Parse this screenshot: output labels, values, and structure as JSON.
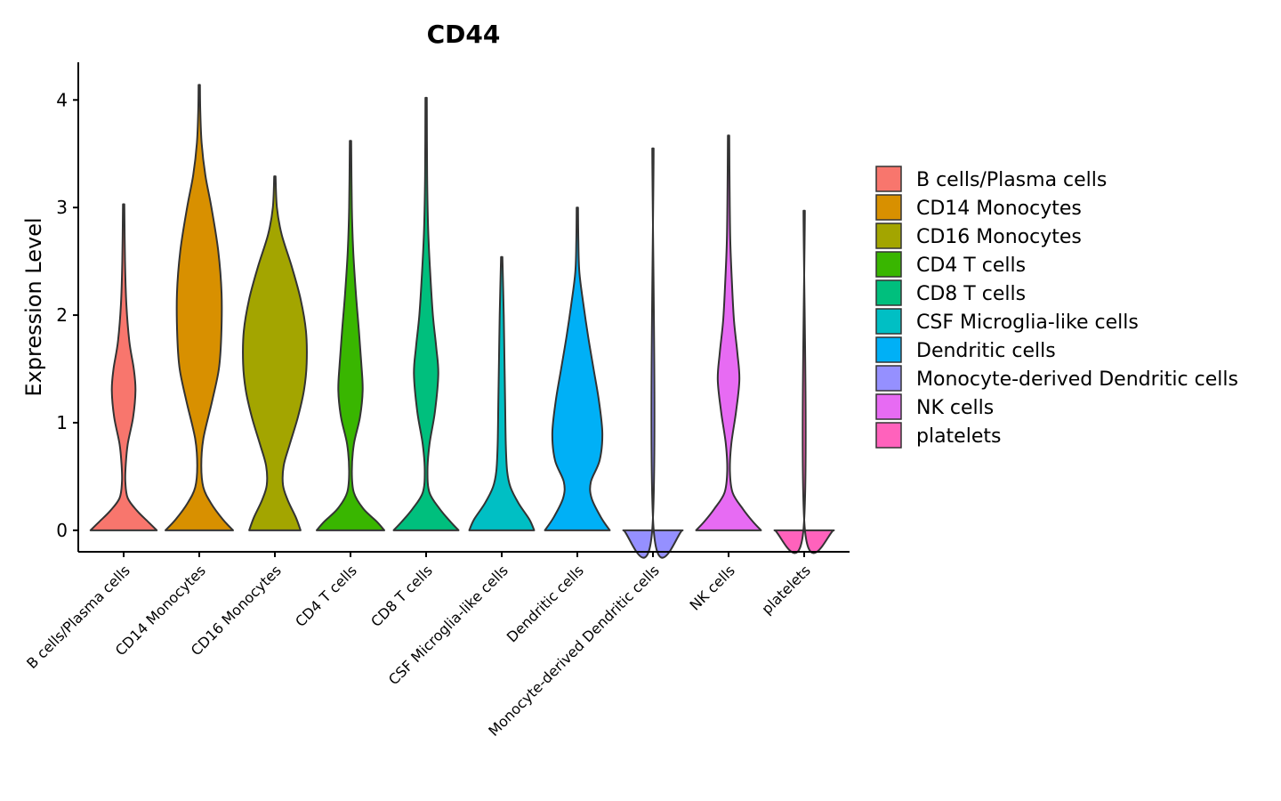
{
  "chart_data": {
    "type": "violin",
    "title": "CD44",
    "xlabel": "",
    "ylabel": "Expression Level",
    "ylim": [
      -0.2,
      4.35
    ],
    "yticks": [
      0,
      1,
      2,
      3,
      4
    ],
    "grid": false,
    "legend_position": "right",
    "categories": [
      "B cells/Plasma cells",
      "CD14 Monocytes",
      "CD16 Monocytes",
      "CD4 T cells",
      "CD8 T cells",
      "CSF Microglia-like cells",
      "Dendritic cells",
      "Monocyte-derived Dendritic cells",
      "NK cells",
      "platelets"
    ],
    "colors": [
      "#F8766D",
      "#D89000",
      "#A3A500",
      "#39B600",
      "#00BF7D",
      "#00BFC4",
      "#00B0F6",
      "#9590FF",
      "#E76BF3",
      "#FF62BC"
    ],
    "series": [
      {
        "name": "B cells/Plasma cells",
        "max": 3.03,
        "density": [
          [
            0,
            0.98
          ],
          [
            0.08,
            0.72
          ],
          [
            0.18,
            0.4
          ],
          [
            0.3,
            0.12
          ],
          [
            0.45,
            0.05
          ],
          [
            0.6,
            0.06
          ],
          [
            0.8,
            0.12
          ],
          [
            1.05,
            0.28
          ],
          [
            1.3,
            0.35
          ],
          [
            1.5,
            0.3
          ],
          [
            1.75,
            0.17
          ],
          [
            2.1,
            0.08
          ],
          [
            2.5,
            0.04
          ],
          [
            3.03,
            0.02
          ]
        ]
      },
      {
        "name": "CD14 Monocytes",
        "max": 4.14,
        "density": [
          [
            0,
            1.0
          ],
          [
            0.1,
            0.7
          ],
          [
            0.25,
            0.35
          ],
          [
            0.4,
            0.12
          ],
          [
            0.6,
            0.06
          ],
          [
            0.85,
            0.12
          ],
          [
            1.2,
            0.38
          ],
          [
            1.5,
            0.58
          ],
          [
            1.8,
            0.65
          ],
          [
            2.2,
            0.66
          ],
          [
            2.6,
            0.56
          ],
          [
            3.0,
            0.36
          ],
          [
            3.3,
            0.18
          ],
          [
            3.6,
            0.07
          ],
          [
            3.9,
            0.03
          ],
          [
            4.14,
            0.02
          ]
        ]
      },
      {
        "name": "CD16 Monocytes",
        "max": 3.29,
        "density": [
          [
            0,
            0.76
          ],
          [
            0.12,
            0.62
          ],
          [
            0.28,
            0.38
          ],
          [
            0.42,
            0.24
          ],
          [
            0.6,
            0.26
          ],
          [
            0.8,
            0.44
          ],
          [
            1.05,
            0.68
          ],
          [
            1.3,
            0.86
          ],
          [
            1.55,
            0.94
          ],
          [
            1.85,
            0.92
          ],
          [
            2.15,
            0.76
          ],
          [
            2.45,
            0.5
          ],
          [
            2.75,
            0.2
          ],
          [
            3.0,
            0.06
          ],
          [
            3.29,
            0.02
          ]
        ]
      },
      {
        "name": "CD4 T cells",
        "max": 3.62,
        "density": [
          [
            0,
            1.0
          ],
          [
            0.08,
            0.78
          ],
          [
            0.2,
            0.38
          ],
          [
            0.35,
            0.1
          ],
          [
            0.55,
            0.04
          ],
          [
            0.8,
            0.1
          ],
          [
            1.05,
            0.28
          ],
          [
            1.3,
            0.36
          ],
          [
            1.55,
            0.32
          ],
          [
            1.85,
            0.25
          ],
          [
            2.2,
            0.16
          ],
          [
            2.6,
            0.08
          ],
          [
            3.0,
            0.04
          ],
          [
            3.62,
            0.02
          ]
        ]
      },
      {
        "name": "CD8 T cells",
        "max": 4.02,
        "density": [
          [
            0,
            0.96
          ],
          [
            0.08,
            0.72
          ],
          [
            0.2,
            0.4
          ],
          [
            0.35,
            0.1
          ],
          [
            0.55,
            0.04
          ],
          [
            0.8,
            0.1
          ],
          [
            1.1,
            0.26
          ],
          [
            1.45,
            0.36
          ],
          [
            1.7,
            0.3
          ],
          [
            2.0,
            0.2
          ],
          [
            2.4,
            0.12
          ],
          [
            2.8,
            0.06
          ],
          [
            3.3,
            0.03
          ],
          [
            4.02,
            0.02
          ]
        ]
      },
      {
        "name": "CSF Microglia-like cells",
        "max": 2.54,
        "density": [
          [
            0,
            0.96
          ],
          [
            0.1,
            0.82
          ],
          [
            0.25,
            0.5
          ],
          [
            0.4,
            0.26
          ],
          [
            0.55,
            0.16
          ],
          [
            0.8,
            0.12
          ],
          [
            1.2,
            0.1
          ],
          [
            1.6,
            0.08
          ],
          [
            2.0,
            0.06
          ],
          [
            2.54,
            0.02
          ]
        ]
      },
      {
        "name": "Dendritic cells",
        "max": 3.0,
        "density": [
          [
            0,
            0.96
          ],
          [
            0.12,
            0.7
          ],
          [
            0.3,
            0.42
          ],
          [
            0.45,
            0.4
          ],
          [
            0.65,
            0.66
          ],
          [
            0.9,
            0.74
          ],
          [
            1.2,
            0.64
          ],
          [
            1.5,
            0.48
          ],
          [
            1.8,
            0.32
          ],
          [
            2.1,
            0.18
          ],
          [
            2.4,
            0.06
          ],
          [
            2.7,
            0.03
          ],
          [
            3.0,
            0.02
          ]
        ]
      },
      {
        "name": "Monocyte-derived Dendritic cells",
        "max": 3.55,
        "density": [
          [
            0,
            0.88
          ],
          [
            0.01,
            0.02
          ],
          [
            3.55,
            0.02
          ]
        ]
      },
      {
        "name": "NK cells",
        "max": 3.67,
        "density": [
          [
            0,
            0.96
          ],
          [
            0.08,
            0.72
          ],
          [
            0.2,
            0.42
          ],
          [
            0.35,
            0.12
          ],
          [
            0.55,
            0.04
          ],
          [
            0.8,
            0.08
          ],
          [
            1.1,
            0.22
          ],
          [
            1.4,
            0.32
          ],
          [
            1.65,
            0.26
          ],
          [
            1.95,
            0.16
          ],
          [
            2.3,
            0.1
          ],
          [
            2.7,
            0.05
          ],
          [
            3.2,
            0.03
          ],
          [
            3.67,
            0.02
          ]
        ]
      },
      {
        "name": "platelets",
        "max": 2.97,
        "density": [
          [
            0,
            0.88
          ],
          [
            0.01,
            0.02
          ],
          [
            2.97,
            0.02
          ]
        ]
      }
    ]
  }
}
